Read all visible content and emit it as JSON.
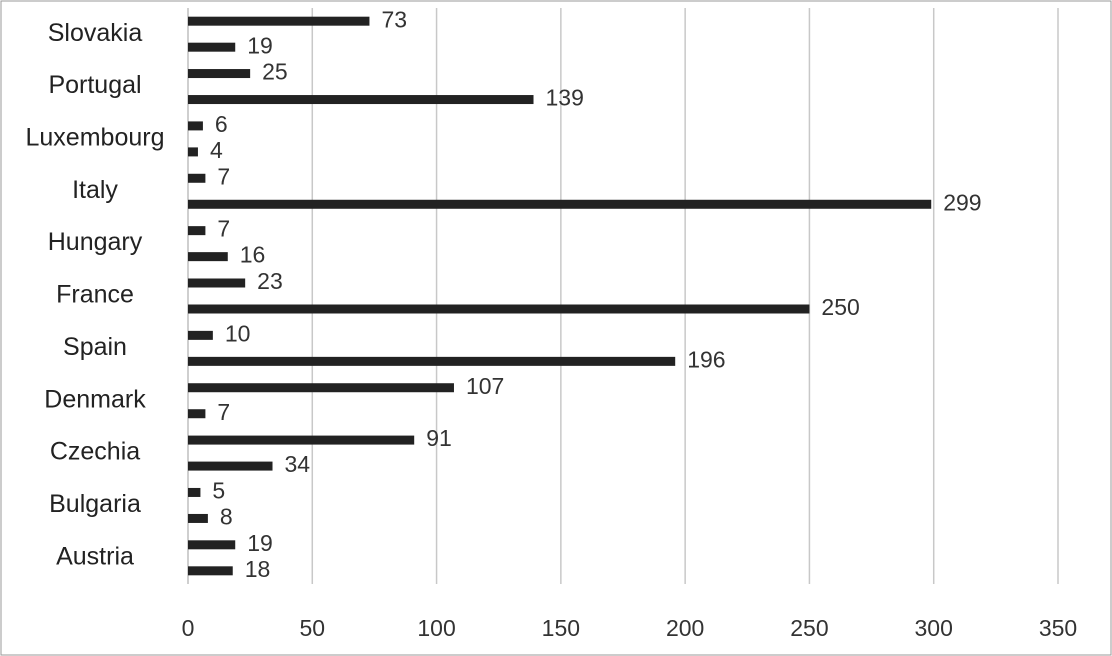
{
  "chart_data": {
    "type": "bar",
    "orientation": "horizontal",
    "categories": [
      "Austria",
      "Bulgaria",
      "Czechia",
      "Denmark",
      "Spain",
      "France",
      "Hungary",
      "Italy",
      "Luxembourg",
      "Portugal",
      "Slovakia"
    ],
    "series": [
      {
        "color": "#222222",
        "values": [
          19,
          5,
          91,
          107,
          10,
          23,
          7,
          7,
          6,
          25,
          73
        ]
      },
      {
        "color": "#222222",
        "values": [
          18,
          8,
          34,
          7,
          196,
          250,
          16,
          299,
          4,
          139,
          19
        ]
      }
    ],
    "xlim": [
      0,
      350
    ],
    "xticks": [
      0,
      50,
      100,
      150,
      200,
      250,
      300,
      350
    ],
    "grid": true
  }
}
